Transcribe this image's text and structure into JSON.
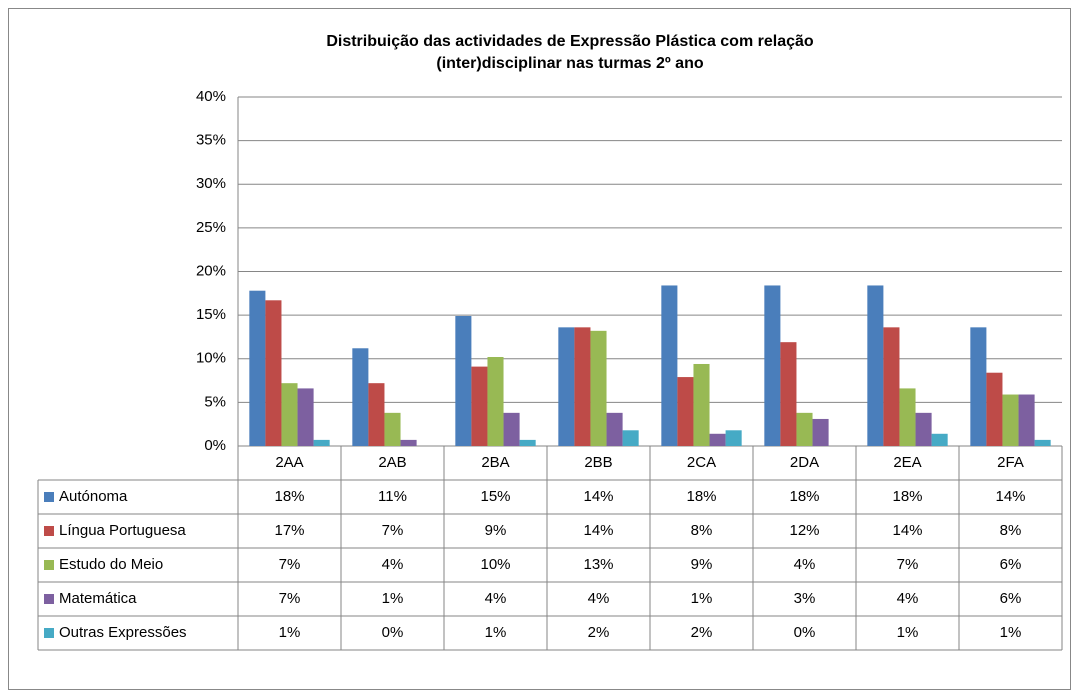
{
  "chart_data": {
    "type": "bar",
    "title": [
      "Distribuição das actividades de Expressão Plástica com relação",
      "(inter)disciplinar nas turmas 2º ano"
    ],
    "categories": [
      "2AA",
      "2AB",
      "2BA",
      "2BB",
      "2CA",
      "2DA",
      "2EA",
      "2FA"
    ],
    "ylim": [
      0,
      0.4
    ],
    "yticks": [
      {
        "value": 0,
        "label": "0%"
      },
      {
        "value": 0.05,
        "label": "5%"
      },
      {
        "value": 0.1,
        "label": "10%"
      },
      {
        "value": 0.15,
        "label": "15%"
      },
      {
        "value": 0.2,
        "label": "20%"
      },
      {
        "value": 0.25,
        "label": "25%"
      },
      {
        "value": 0.3,
        "label": "30%"
      },
      {
        "value": 0.35,
        "label": "35%"
      },
      {
        "value": 0.4,
        "label": "40%"
      }
    ],
    "grid": true,
    "series": [
      {
        "name": "Autónoma",
        "color": "#4a7ebb",
        "values": [
          0.178,
          0.112,
          0.149,
          0.136,
          0.184,
          0.184,
          0.184,
          0.136
        ],
        "value_labels": [
          "18%",
          "11%",
          "15%",
          "14%",
          "18%",
          "18%",
          "18%",
          "14%"
        ]
      },
      {
        "name": "Língua Portuguesa",
        "color": "#be4b48",
        "values": [
          0.167,
          0.072,
          0.091,
          0.136,
          0.079,
          0.119,
          0.136,
          0.084
        ],
        "value_labels": [
          "17%",
          "7%",
          "9%",
          "14%",
          "8%",
          "12%",
          "14%",
          "8%"
        ]
      },
      {
        "name": "Estudo do Meio",
        "color": "#98b954",
        "values": [
          0.072,
          0.038,
          0.102,
          0.132,
          0.094,
          0.038,
          0.066,
          0.059
        ],
        "value_labels": [
          "7%",
          "4%",
          "10%",
          "13%",
          "9%",
          "4%",
          "7%",
          "6%"
        ]
      },
      {
        "name": "Matemática",
        "color": "#7d60a0",
        "values": [
          0.066,
          0.007,
          0.038,
          0.038,
          0.014,
          0.031,
          0.038,
          0.059
        ],
        "value_labels": [
          "7%",
          "1%",
          "4%",
          "4%",
          "1%",
          "3%",
          "4%",
          "6%"
        ]
      },
      {
        "name": "Outras Expressões",
        "color": "#46aac5",
        "values": [
          0.007,
          0,
          0.007,
          0.018,
          0.018,
          0,
          0.014,
          0.007
        ],
        "value_labels": [
          "1%",
          "0%",
          "1%",
          "2%",
          "2%",
          "0%",
          "1%",
          "1%"
        ]
      }
    ]
  }
}
